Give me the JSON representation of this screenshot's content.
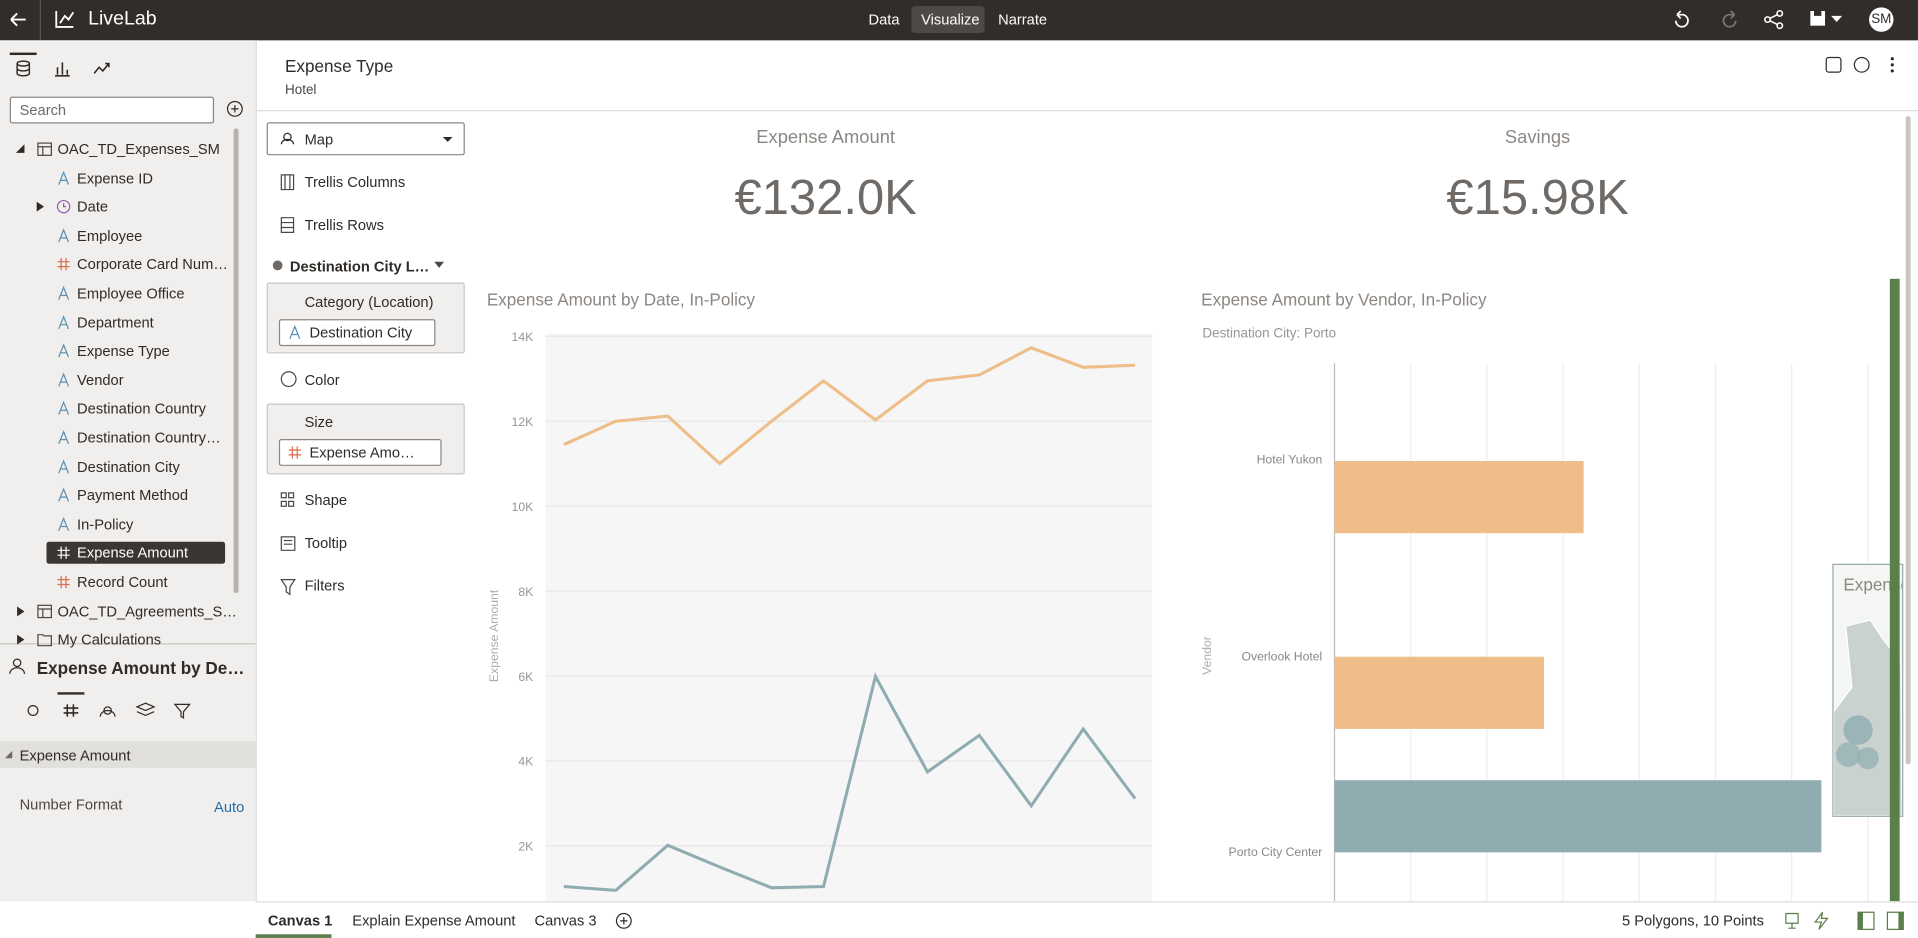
{
  "app": {
    "title": "LiveLab",
    "tabs": [
      "Data",
      "Visualize",
      "Narrate"
    ],
    "user": "SM"
  },
  "data_panel": {
    "search_placeholder": "Search",
    "datasets": [
      {
        "name": "OAC_TD_Expenses_SM",
        "columns": [
          "Expense ID",
          "Date",
          "Employee",
          "Corporate Card Num…",
          "Employee Office",
          "Department",
          "Expense Type",
          "Vendor",
          "Destination Country",
          "Destination Country…",
          "Destination City",
          "Payment Method",
          "In-Policy",
          "Expense Amount",
          "Record Count"
        ]
      },
      {
        "name": "OAC_TD_Agreements_S…"
      }
    ],
    "folder": "My Calculations"
  },
  "properties_panel": {
    "title": "Expense Amount by De…",
    "section": "Expense Amount",
    "rows": [
      {
        "label": "Number Format",
        "value": "Auto"
      }
    ]
  },
  "filter_bar": {
    "label": "Expense Type",
    "value": "Hotel"
  },
  "grammar_panel": {
    "viz_type": "Map",
    "trellis": [
      "Trellis Columns",
      "Trellis Rows"
    ],
    "layer": "Destination City L…",
    "category": {
      "label": "Category (Location)",
      "field": "Destination City"
    },
    "color": "Color",
    "size": {
      "label": "Size",
      "field": "Expense Amo…"
    },
    "more": [
      "Shape",
      "Tooltip",
      "Filters"
    ]
  },
  "kpis": [
    {
      "title": "Expense Amount",
      "value": "€132.0K"
    },
    {
      "title": "Savings",
      "value": "€15.98K"
    }
  ],
  "chart_data": [
    {
      "type": "line",
      "title": "Expense Amount by Date, In-Policy",
      "y_label": "Expense Amount",
      "ylim": [
        750,
        14000
      ],
      "yticks": [
        {
          "value": 2000,
          "label": "2K"
        },
        {
          "value": 4000,
          "label": "4K"
        },
        {
          "value": 6000,
          "label": "6K"
        },
        {
          "value": 8000,
          "label": "8K"
        },
        {
          "value": 10000,
          "label": "10K"
        },
        {
          "value": 12000,
          "label": "12K"
        },
        {
          "value": 14000,
          "label": "14K"
        }
      ],
      "grid": true,
      "series": [
        {
          "color": "#eebd88",
          "values": [
            11450,
            12000,
            12120,
            11000,
            12000,
            12950,
            12030,
            12950,
            13090,
            13730,
            13270,
            13320
          ]
        },
        {
          "color": "#8fadb0",
          "values": [
            1040,
            950,
            2010,
            1500,
            1010,
            1040,
            5990,
            3740,
            4600,
            2940,
            4750,
            3110
          ]
        }
      ]
    },
    {
      "type": "hbar",
      "title": "Expense Amount by Vendor, In-Policy",
      "subtitle": "Destination City: Porto",
      "y_label": "Vendor",
      "categories": [
        "Hotel Yukon",
        "Overlook Hotel",
        "Porto City Center"
      ],
      "values": [
        3.27,
        2.75,
        6.39
      ],
      "colors": [
        "#eebd88",
        "#eebd88",
        "#8fadb0"
      ],
      "xlim": [
        0,
        7
      ],
      "xticks": [
        0,
        1,
        2,
        3,
        4,
        5,
        6,
        7
      ],
      "grid": true
    }
  ],
  "map_viz": {
    "title": "Expense"
  },
  "footer": {
    "tabs": [
      "Canvas 1",
      "Explain Expense Amount",
      "Canvas 3"
    ],
    "status": "5 Polygons, 10 Points"
  }
}
